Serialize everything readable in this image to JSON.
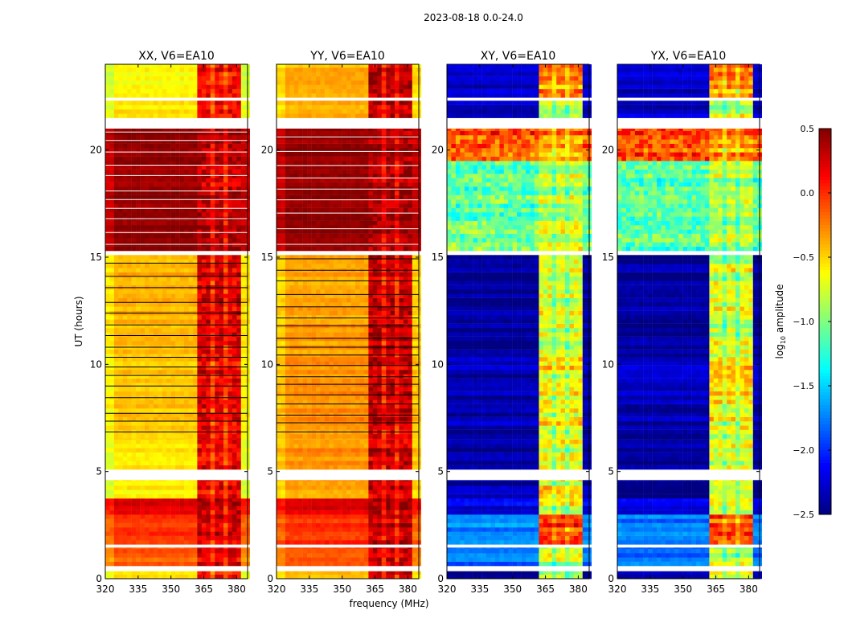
{
  "chart_data": {
    "type": "heatmap",
    "title": "2023-08-18 0.0-24.0",
    "xlabel": "frequency (MHz)",
    "ylabel": "UT (hours)",
    "xlim": [
      320,
      385
    ],
    "ylim": [
      0,
      24
    ],
    "xticks": [
      "320",
      "335",
      "350",
      "365",
      "380"
    ],
    "yticks": [
      "0",
      "5",
      "10",
      "15",
      "20"
    ],
    "colorbar": {
      "label_main": "log",
      "label_sub": "10",
      "label_rest": " amplitude",
      "range": [
        -2.5,
        0.5
      ],
      "ticks": [
        "0.5",
        "0.0",
        "−0.5",
        "−1.0",
        "−1.5",
        "−2.0",
        "−2.5"
      ],
      "colormap": "jet"
    },
    "panels": [
      {
        "title": "XX, V6=EA10",
        "segments": [
          [
            0.0,
            0.35,
            -0.55,
            0.1
          ],
          [
            0.6,
            1.45,
            -0.15,
            0.2
          ],
          [
            1.6,
            3.0,
            0.0,
            0.3
          ],
          [
            3.0,
            3.75,
            0.2,
            0.3
          ],
          [
            3.75,
            4.6,
            -0.6,
            0.2
          ],
          [
            5.1,
            6.55,
            -0.55,
            0.2
          ],
          [
            6.55,
            10.5,
            -0.45,
            0.2
          ],
          [
            10.5,
            15.1,
            -0.4,
            0.25
          ],
          [
            15.3,
            21.0,
            0.45,
            0.35
          ],
          [
            21.5,
            22.3,
            -0.55,
            0.1
          ],
          [
            22.45,
            24.0,
            -0.6,
            0.15
          ]
        ]
      },
      {
        "title": "YY, V6=EA10",
        "segments": [
          [
            0.0,
            0.35,
            -0.45,
            0.2
          ],
          [
            0.6,
            1.45,
            -0.1,
            0.3
          ],
          [
            1.6,
            3.0,
            0.0,
            0.35
          ],
          [
            3.0,
            3.75,
            0.2,
            0.35
          ],
          [
            3.75,
            4.6,
            -0.35,
            0.3
          ],
          [
            5.1,
            6.55,
            -0.3,
            0.3
          ],
          [
            6.55,
            10.5,
            -0.3,
            0.3
          ],
          [
            10.5,
            15.1,
            -0.35,
            0.3
          ],
          [
            15.3,
            21.0,
            0.45,
            0.4
          ],
          [
            21.5,
            22.3,
            -0.4,
            0.3
          ],
          [
            22.45,
            24.0,
            -0.4,
            0.3
          ]
        ]
      },
      {
        "title": "XY, V6=EA10",
        "segments": [
          [
            0.0,
            0.35,
            -2.4,
            -0.8
          ],
          [
            0.6,
            1.45,
            -1.8,
            -0.8
          ],
          [
            1.6,
            3.0,
            -1.75,
            -0.1
          ],
          [
            3.0,
            3.75,
            -2.2,
            -0.7
          ],
          [
            3.75,
            4.6,
            -2.4,
            -0.6
          ],
          [
            5.1,
            6.55,
            -2.4,
            -0.7
          ],
          [
            6.55,
            10.5,
            -2.35,
            -0.6
          ],
          [
            10.5,
            15.1,
            -2.4,
            -0.7
          ],
          [
            15.3,
            19.5,
            -1.1,
            -0.8
          ],
          [
            19.5,
            21.0,
            -0.1,
            -0.3
          ],
          [
            21.5,
            22.3,
            -2.3,
            -0.8
          ],
          [
            22.45,
            24.0,
            -2.3,
            -0.3
          ]
        ]
      },
      {
        "title": "YX, V6=EA10",
        "segments": [
          [
            0.0,
            0.35,
            -2.4,
            -0.8
          ],
          [
            0.6,
            1.45,
            -1.8,
            -0.8
          ],
          [
            1.6,
            3.0,
            -1.75,
            -0.1
          ],
          [
            3.0,
            3.75,
            -2.2,
            -0.7
          ],
          [
            3.75,
            4.6,
            -2.4,
            -0.6
          ],
          [
            5.1,
            6.55,
            -2.4,
            -0.7
          ],
          [
            6.55,
            10.5,
            -2.35,
            -0.6
          ],
          [
            10.5,
            15.1,
            -2.4,
            -0.7
          ],
          [
            15.3,
            19.5,
            -1.1,
            -0.8
          ],
          [
            19.5,
            21.0,
            -0.1,
            -0.3
          ],
          [
            21.5,
            22.3,
            -2.3,
            -0.8
          ],
          [
            22.45,
            24.0,
            -2.3,
            -0.3
          ]
        ]
      }
    ]
  }
}
